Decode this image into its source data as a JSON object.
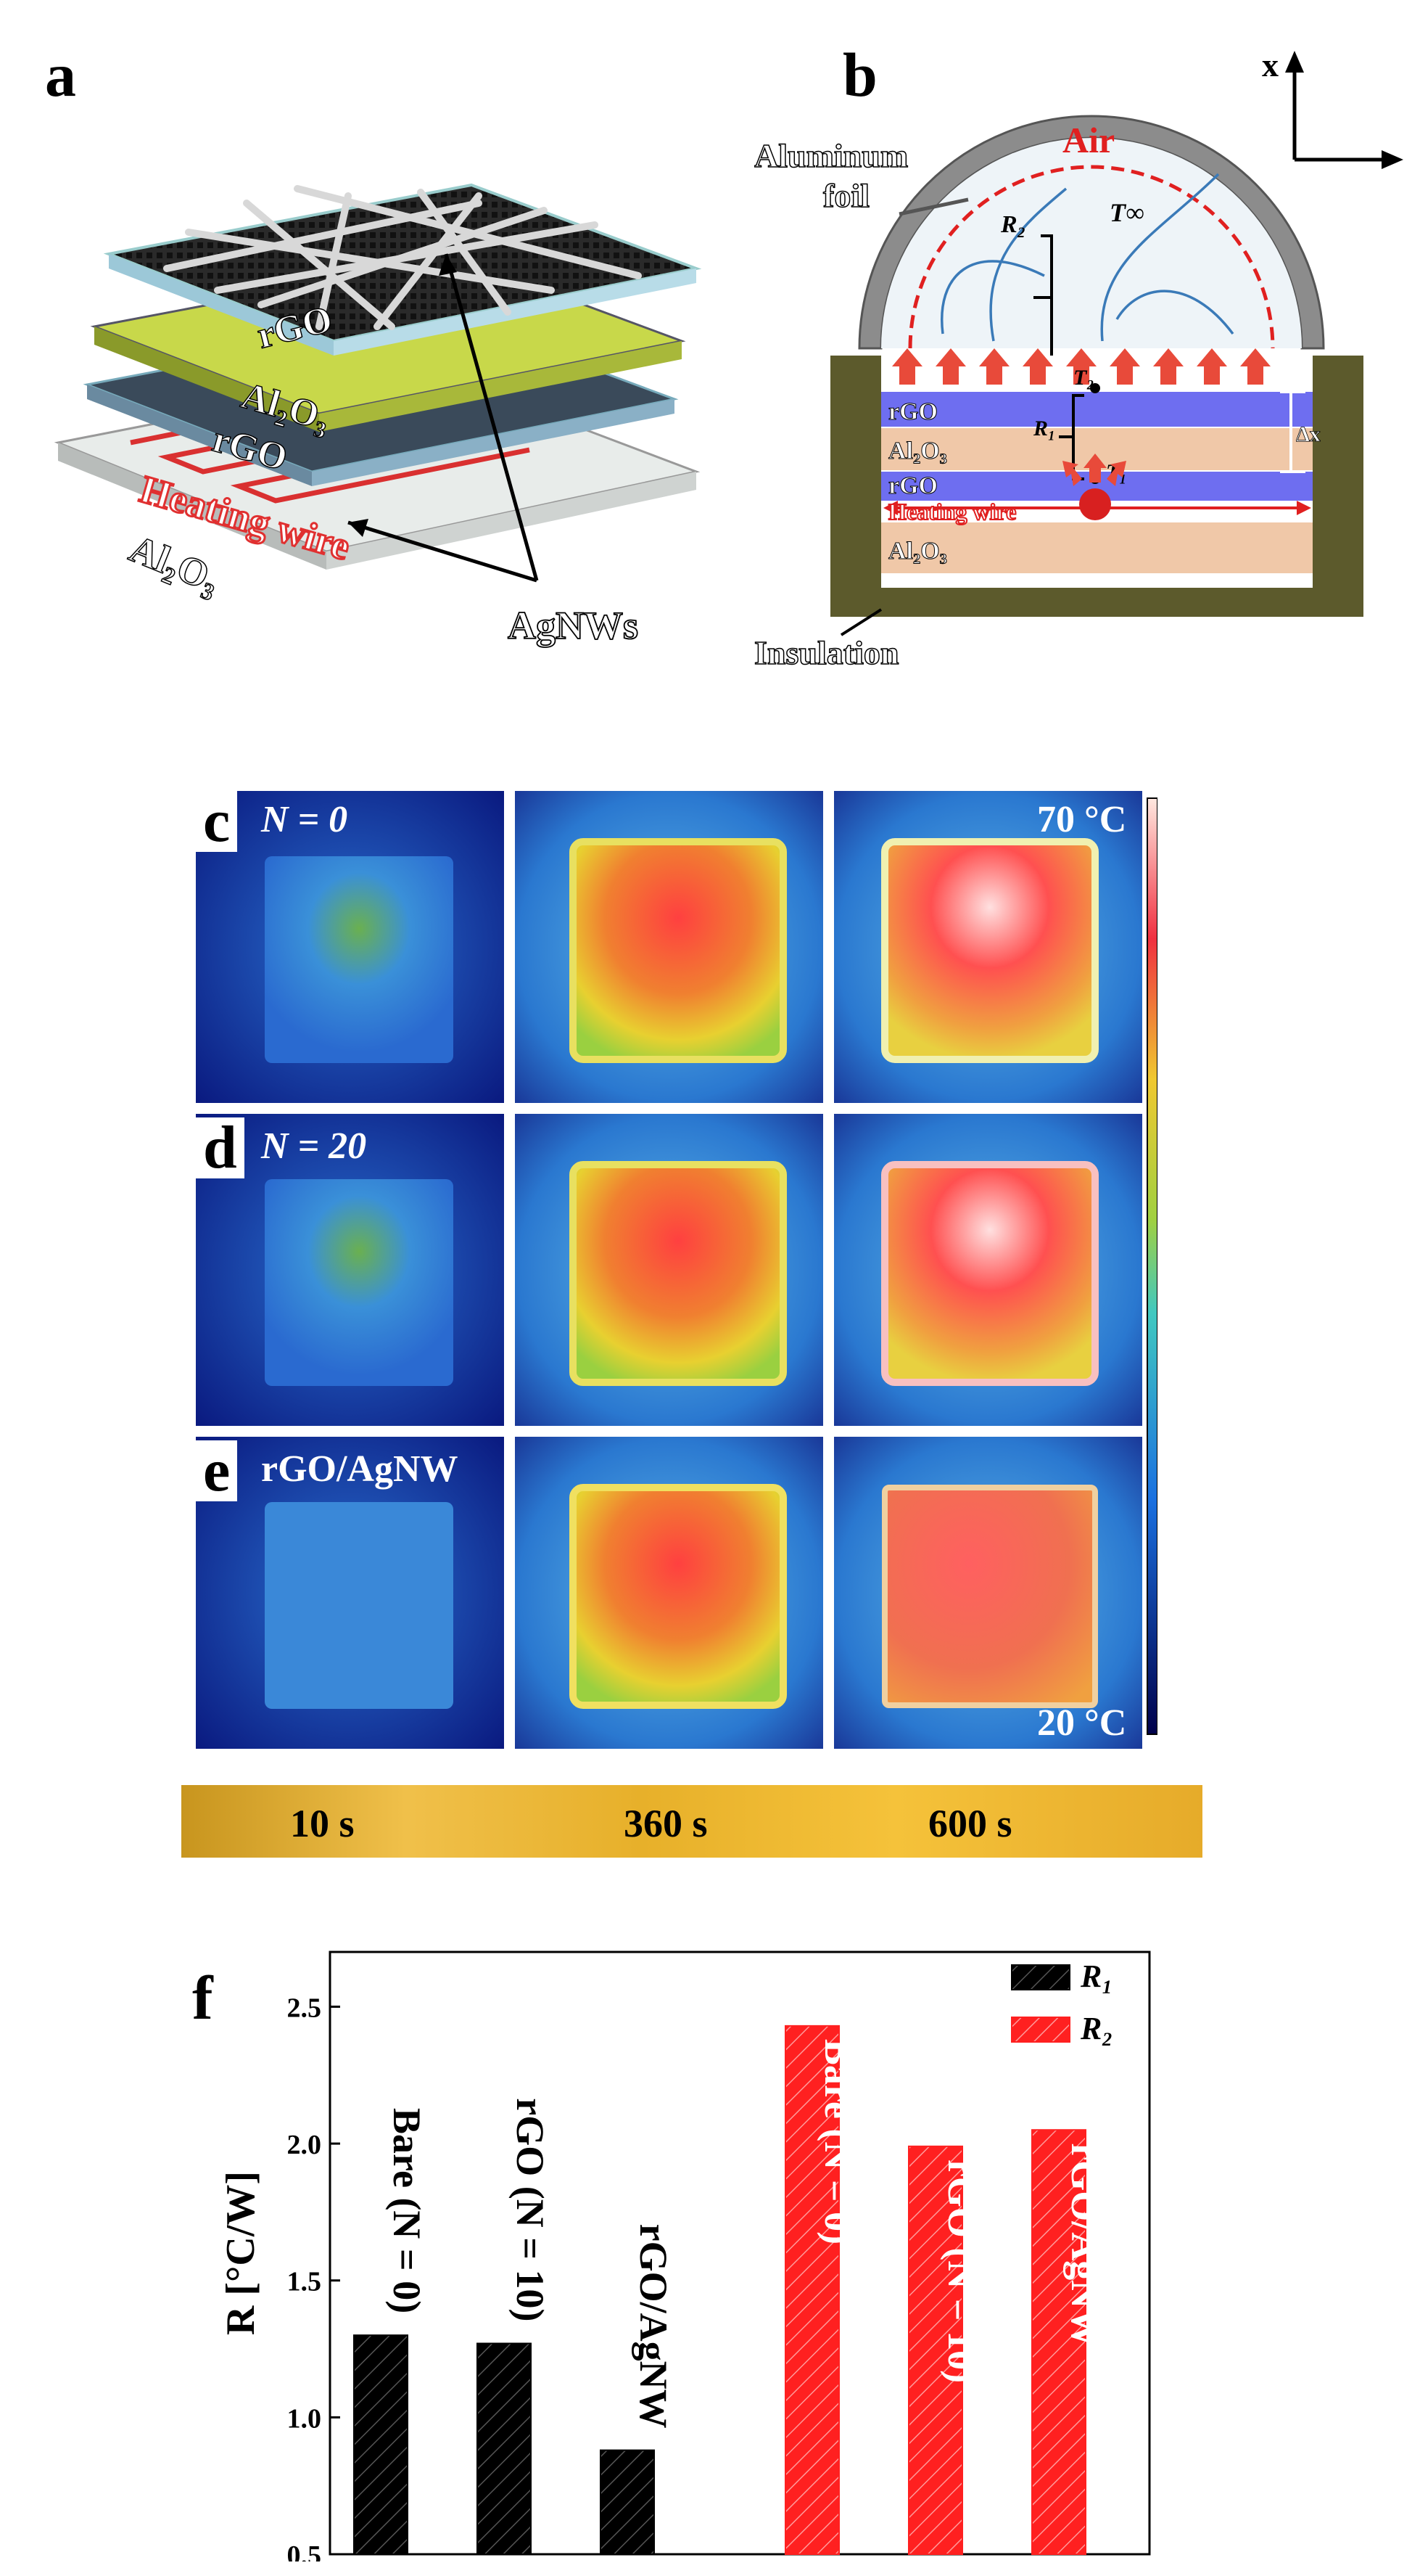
{
  "panels": {
    "a": {
      "letter": "a",
      "labels": {
        "rgo_top": "rGO",
        "al2o3_top": "Al₂O₃",
        "rgo_bottom": "rGO",
        "heating_wire": "Heating wire",
        "al2o3_bottom": "Al₂O₃",
        "agnws": "AgNWs"
      }
    },
    "b": {
      "letter": "b",
      "labels": {
        "aluminum_foil_1": "Aluminum",
        "aluminum_foil_2": "foil",
        "air": "Air",
        "x_axis": "x",
        "r2": "R₂",
        "t_inf": "T∞",
        "t2": "T₂",
        "r1": "R₁",
        "t1": "T₁",
        "rgo_1": "rGO",
        "al2o3": "Al₂O₃",
        "rgo_2": "rGO",
        "heating_wire": "Heating wire",
        "al2o3_bottom": "Al₂O₃",
        "delta_x": "Δx",
        "insulation": "Insulation"
      }
    },
    "c": {
      "letter": "c",
      "label": "N = 0",
      "temp_max": "70 °C"
    },
    "d": {
      "letter": "d",
      "label": "N = 20"
    },
    "e": {
      "letter": "e",
      "label": "rGO/AgNW",
      "temp_min": "20 °C"
    },
    "times": [
      "10 s",
      "360 s",
      "600 s"
    ],
    "f": {
      "letter": "f"
    }
  },
  "colors": {
    "r1": "#000000",
    "r2": "#ff2020",
    "rgo_layer": "#6e6ef0",
    "al2o3_layer": "#f0c8a8",
    "insulation": "#5c5a2c"
  },
  "chart_data": {
    "type": "bar",
    "ylabel": "R [°C/W]",
    "ylim": [
      0.5,
      2.7
    ],
    "yticks": [
      0.5,
      1.0,
      1.5,
      2.0,
      2.5
    ],
    "ytick_labels": [
      "0.5",
      "1.0",
      "1.5",
      "2.0",
      "2.5"
    ],
    "legend_position": "top-right",
    "series": [
      {
        "name": "R₁",
        "color": "#000000",
        "categories": [
          "Bare (N = 0)",
          "rGO (N = 10)",
          "rGO/AgNW"
        ],
        "values": [
          1.3,
          1.27,
          0.88
        ]
      },
      {
        "name": "R₂",
        "color": "#ff2020",
        "categories": [
          "Bare (N = 0)",
          "rGO (N = 10)",
          "rGO/AgNW"
        ],
        "values": [
          2.43,
          1.99,
          2.05
        ]
      }
    ]
  }
}
